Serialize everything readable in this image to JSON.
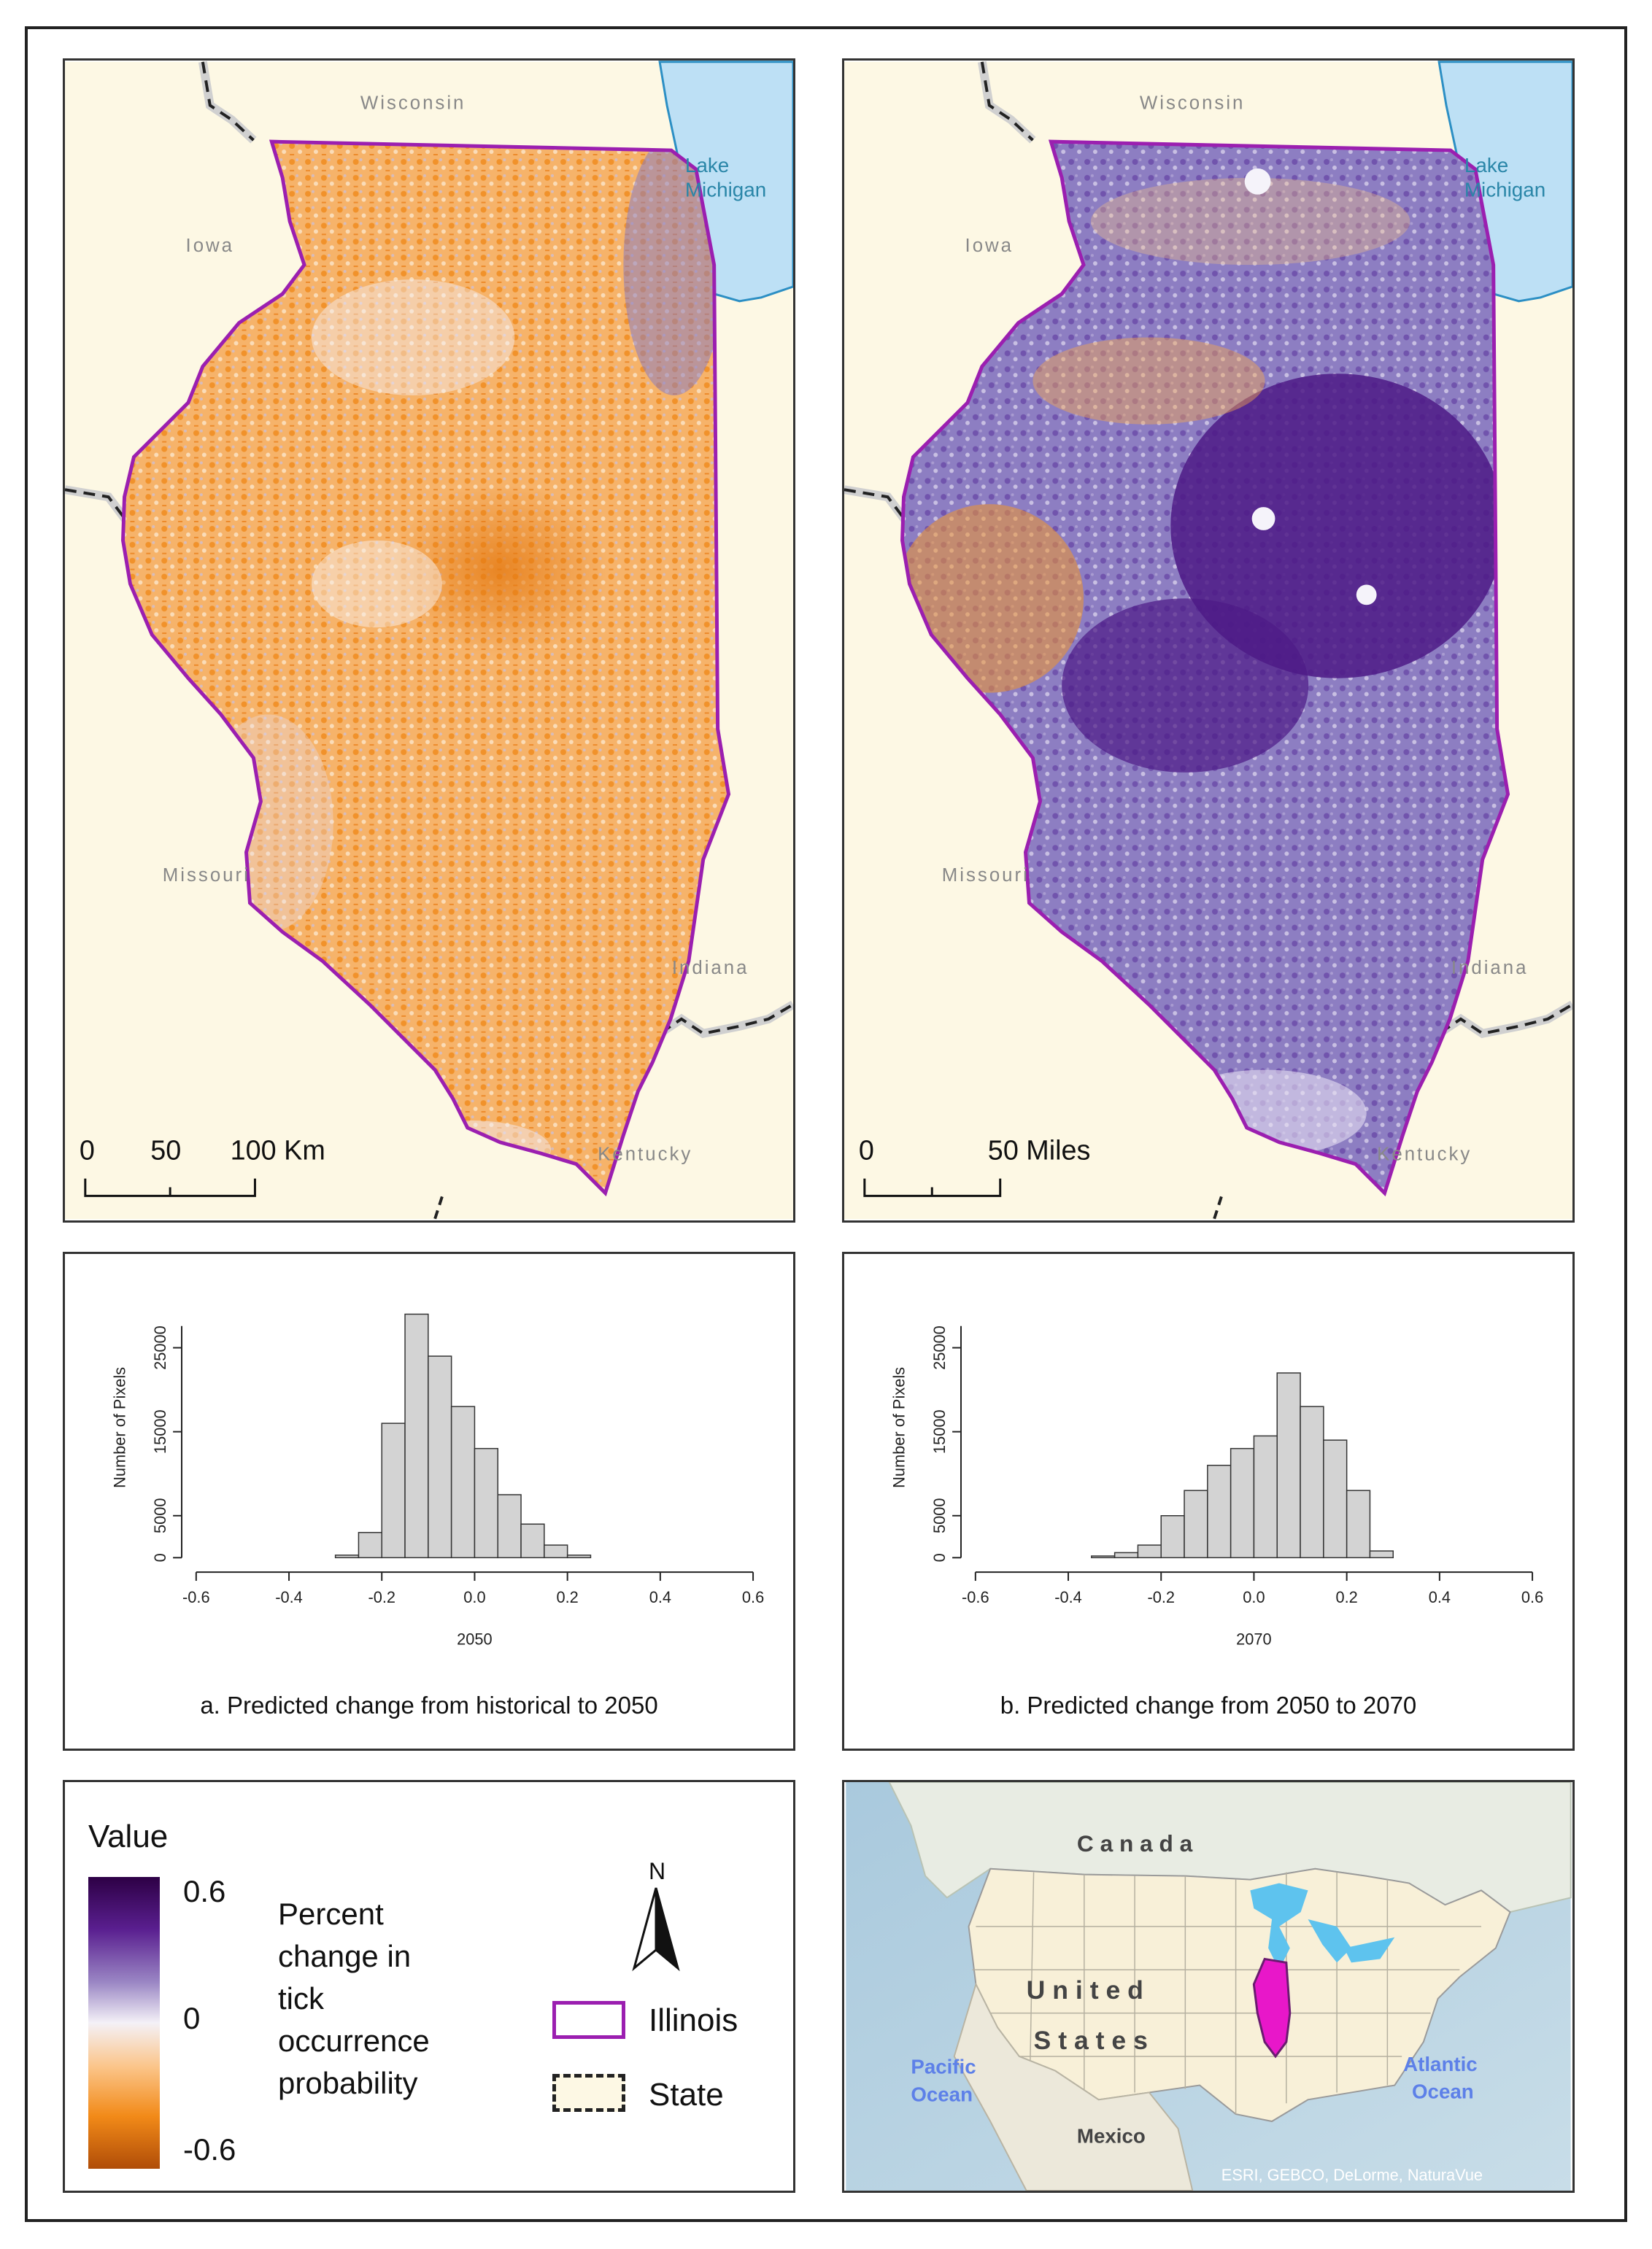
{
  "maps": [
    {
      "id": "a",
      "labels": {
        "north": "Wisconsin",
        "west": "Iowa",
        "southwest": "Missouri",
        "east": "Indiana",
        "south": "Kentucky"
      },
      "lake": [
        "Lake",
        "Michigan"
      ],
      "scale": {
        "ticks": [
          "0",
          "50",
          "100 Km"
        ]
      },
      "dominant_tone": "orange"
    },
    {
      "id": "b",
      "labels": {
        "north": "Wisconsin",
        "west": "Iowa",
        "southwest": "Missouri",
        "east": "Indiana",
        "south": "Kentucky"
      },
      "lake": [
        "Lake",
        "Michigan"
      ],
      "scale": {
        "ticks": [
          "0",
          "50 Miles"
        ]
      },
      "dominant_tone": "purple"
    }
  ],
  "chart_data": [
    {
      "type": "bar",
      "bin_edges": [
        -0.3,
        -0.25,
        -0.2,
        -0.15,
        -0.1,
        -0.05,
        0,
        0.05,
        0.1,
        0.15,
        0.2,
        0.25
      ],
      "values": [
        300,
        3000,
        16000,
        29000,
        24000,
        18000,
        13000,
        7500,
        4000,
        1500,
        300
      ],
      "xlabel": "2050",
      "ylabel": "Number of Pixels",
      "x_ticks": [
        "-0.6",
        "-0.4",
        "-0.2",
        "0.0",
        "0.2",
        "0.4",
        "0.6"
      ],
      "y_ticks": [
        "0",
        "5000",
        "15000",
        "25000"
      ],
      "xlim": [
        -0.6,
        0.6
      ],
      "ylim": [
        0,
        31000
      ],
      "caption": "a. Predicted change from historical to 2050"
    },
    {
      "type": "bar",
      "bin_edges": [
        -0.35,
        -0.3,
        -0.25,
        -0.2,
        -0.15,
        -0.1,
        -0.05,
        0,
        0.05,
        0.1,
        0.15,
        0.2,
        0.25,
        0.3
      ],
      "values": [
        200,
        600,
        1500,
        5000,
        8000,
        11000,
        13000,
        14500,
        22000,
        18000,
        14000,
        8000,
        800
      ],
      "xlabel": "2070",
      "ylabel": "Number of Pixels",
      "x_ticks": [
        "-0.6",
        "-0.4",
        "-0.2",
        "0.0",
        "0.2",
        "0.4",
        "0.6"
      ],
      "y_ticks": [
        "0",
        "5000",
        "15000",
        "25000"
      ],
      "xlim": [
        -0.6,
        0.6
      ],
      "ylim": [
        0,
        31000
      ],
      "caption": "b. Predicted change from 2050 to 2070"
    }
  ],
  "legend": {
    "title": "Value",
    "max_label": "0.6",
    "mid_label": "0",
    "min_label": "-0.6",
    "description": [
      "Percent",
      "change in",
      "tick",
      "occurrence",
      "probability"
    ],
    "north_label": "N",
    "items": [
      {
        "label": "Illinois",
        "color": "#9b1fb0",
        "style": "solid"
      },
      {
        "label": "State",
        "color": "#222222",
        "style": "dashed"
      }
    ],
    "ramp_colors": [
      "#2d0045",
      "#5a1f90",
      "#9a86c4",
      "#f4f1f7",
      "#fbc58a",
      "#f28a18",
      "#b04d08"
    ]
  },
  "overview": {
    "labels": {
      "canada": "C a n a d a",
      "united1": "U n i t e d",
      "united2": "S t a t e s",
      "mexico": "Mexico",
      "pacific1": "Pacific",
      "pacific2": "Ocean",
      "atlantic1": "Atlantic",
      "atlantic2": "Ocean"
    },
    "credit": "ESRI, GEBCO, DeLorme, NaturaVue",
    "highlight_color": "#e817c9"
  }
}
